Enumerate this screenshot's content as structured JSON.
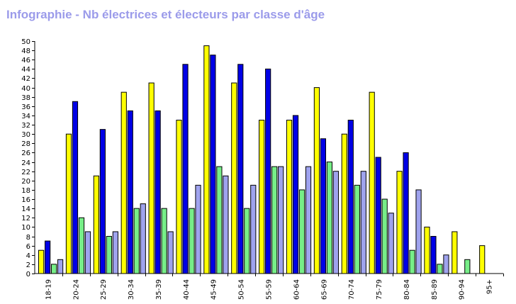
{
  "title": "Infographie - Nb électrices et électeurs par classe d'âge",
  "chart_data": {
    "type": "bar",
    "title": "Infographie - Nb électrices et électeurs par classe d'âge",
    "xlabel": "",
    "ylabel": "",
    "ylim": [
      0,
      50
    ],
    "yticks": [
      0,
      2,
      4,
      6,
      8,
      10,
      12,
      14,
      16,
      18,
      20,
      22,
      24,
      26,
      28,
      30,
      32,
      34,
      36,
      38,
      40,
      42,
      44,
      46,
      48,
      50
    ],
    "grid": false,
    "categories": [
      "18-19",
      "20-24",
      "25-29",
      "30-34",
      "35-39",
      "40-44",
      "45-49",
      "50-54",
      "55-59",
      "60-64",
      "65-69",
      "70-74",
      "75-79",
      "80-84",
      "85-89",
      "90-94",
      "95+"
    ],
    "series": [
      {
        "color": "#ffff00",
        "values": [
          5,
          30,
          21,
          39,
          41,
          33,
          49,
          41,
          33,
          33,
          40,
          30,
          39,
          22,
          10,
          9,
          6
        ]
      },
      {
        "color": "#0000e6",
        "values": [
          7,
          37,
          31,
          35,
          35,
          45,
          47,
          45,
          44,
          34,
          29,
          33,
          25,
          26,
          8,
          0,
          0
        ]
      },
      {
        "color": "#77ee88",
        "values": [
          2,
          12,
          8,
          14,
          14,
          14,
          23,
          14,
          23,
          18,
          24,
          19,
          16,
          5,
          2,
          3,
          0
        ]
      },
      {
        "color": "#9fa3ee",
        "values": [
          3,
          9,
          9,
          15,
          9,
          19,
          21,
          19,
          23,
          23,
          22,
          22,
          13,
          18,
          4,
          0,
          0
        ]
      }
    ]
  }
}
